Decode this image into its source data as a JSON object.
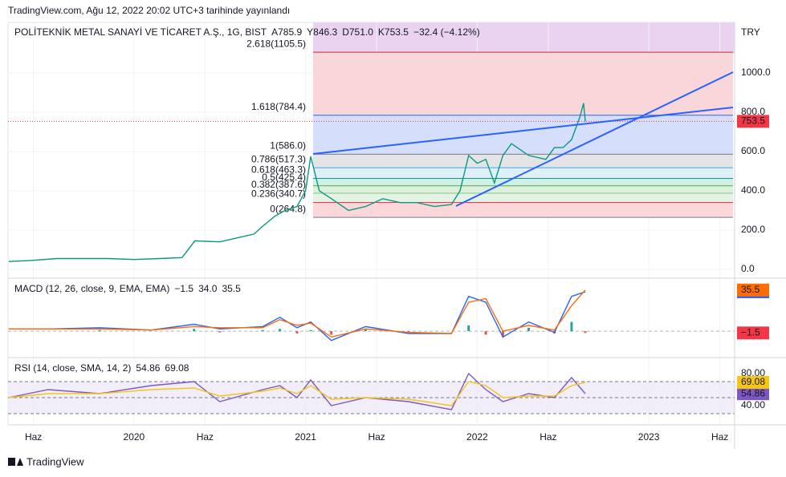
{
  "header": {
    "published": "TradingView.com, Ağu 12, 2022 20:02 UTC+3 tarihinde yayınlandı"
  },
  "footer": {
    "brand": "TradingView"
  },
  "chart_data": [
    {
      "type": "line",
      "title": "POLİTEKNİK METAL SANAYİ VE TİCARET A.Ş., 1G, BIST",
      "legend": [
        "A785.9",
        "Y846.3",
        "D751.0",
        "K753.5",
        "−32.4 (−4.12%)"
      ],
      "currency": "TRY",
      "last_price": 753.5,
      "xlim": [
        2019.266,
        2023.5
      ],
      "xticks": [
        {
          "value": 2019.414,
          "label": "Haz"
        },
        2020,
        {
          "value": 2020.414,
          "label": "Haz"
        },
        2021,
        {
          "value": 2021.414,
          "label": "Haz"
        },
        2022,
        {
          "value": 2022.414,
          "label": "Haz"
        },
        2023,
        {
          "value": 2023.414,
          "label": "Haz"
        }
      ],
      "ylim": [
        -45,
        1257
      ],
      "yticks": [
        {
          "value": 0,
          "label": "0.0"
        },
        {
          "value": 200,
          "label": "200.0"
        },
        {
          "value": 400,
          "label": "400.0"
        },
        {
          "value": 600,
          "label": "600.0"
        },
        {
          "value": 800,
          "label": "800.0"
        },
        {
          "value": 1000,
          "label": "1000.0"
        }
      ],
      "grid": true,
      "x": [
        2019.27,
        2019.4,
        2019.55,
        2019.7,
        2019.85,
        2020.0,
        2020.15,
        2020.28,
        2020.355,
        2020.5,
        2020.6,
        2020.7,
        2020.75,
        2020.82,
        2020.88,
        2020.95,
        2021.0,
        2021.03,
        2021.08,
        2021.15,
        2021.25,
        2021.35,
        2021.45,
        2021.55,
        2021.65,
        2021.75,
        2021.85,
        2021.9,
        2021.95,
        2022.0,
        2022.05,
        2022.1,
        2022.15,
        2022.2,
        2022.3,
        2022.4,
        2022.45,
        2022.5,
        2022.55,
        2022.6,
        2022.62,
        2022.63
      ],
      "series": [
        {
          "color": "#089981",
          "values": [
            40,
            45,
            55,
            55,
            55,
            50,
            55,
            60,
            145,
            140,
            160,
            180,
            220,
            270,
            300,
            320,
            400,
            575,
            400,
            360,
            300,
            320,
            360,
            340,
            340,
            320,
            330,
            400,
            580,
            540,
            560,
            440,
            580,
            640,
            580,
            560,
            620,
            620,
            660,
            780,
            846,
            753.5
          ]
        }
      ],
      "fib_levels": [
        {
          "value": 1105.5,
          "label": "2.618(1105.5)",
          "color": "#c62828",
          "fill": "#f9d6d9"
        },
        {
          "value": 784.4,
          "label": "1.618(784.4)",
          "color": "#2962ff",
          "fill": "#d5defa"
        },
        {
          "value": 586.0,
          "label": "1(586.0)",
          "color": "#787b86",
          "fill": "#e4e4e6"
        },
        {
          "value": 517.3,
          "label": "0.786(517.3)",
          "color": "#42a5f5",
          "fill": "#e0f0fb"
        },
        {
          "value": 463.3,
          "label": "0.618(463.3)",
          "color": "#089981",
          "fill": "#d3eee6"
        },
        {
          "value": 425.4,
          "label": "0.5(425.4)",
          "color": "#4caf50",
          "fill": "#dcf0dc"
        },
        {
          "value": 387.6,
          "label": "0.382(387.6)",
          "color": "#81c784",
          "fill": "#e5f3e5"
        },
        {
          "value": 340.7,
          "label": "0.236(340.7)",
          "color": "#f23645",
          "fill": "#fbd7da"
        },
        {
          "value": 264.8,
          "label": "0(264.8)",
          "color": "#787b86",
          "fill": "none"
        }
      ]
    },
    {
      "type": "line",
      "title": "MACD (12, 26, close, 9, EMA, EMA)",
      "ylim": [
        -22,
        45
      ],
      "x": [
        2019.27,
        2019.5,
        2019.8,
        2020.1,
        2020.35,
        2020.5,
        2020.75,
        2020.85,
        2020.95,
        2021.03,
        2021.15,
        2021.35,
        2021.6,
        2021.85,
        2021.95,
        2022.05,
        2022.15,
        2022.3,
        2022.45,
        2022.55,
        2022.63
      ],
      "series": [
        {
          "color": "#2962ff",
          "values": [
            2,
            2,
            3,
            1,
            6,
            2,
            4,
            12,
            3,
            8,
            -8,
            4,
            -2,
            -2,
            30,
            25,
            -5,
            8,
            -1,
            30,
            34
          ]
        },
        {
          "color": "#ff6d00",
          "values": [
            2,
            2,
            2,
            1,
            4,
            3,
            3,
            10,
            5,
            7,
            -5,
            2,
            -1,
            -2,
            25,
            28,
            0,
            5,
            1,
            22,
            35.5
          ]
        }
      ],
      "histogram": [
        0,
        0,
        1,
        0,
        2,
        -1,
        1,
        2,
        -2,
        1,
        -3,
        2,
        -1,
        0,
        5,
        -3,
        -5,
        3,
        -2,
        8,
        -1.5
      ],
      "readouts": [
        {
          "value": -1.5,
          "label": "−1.5",
          "color": "#f23645"
        },
        {
          "value": 34,
          "label": "34.0",
          "color": "#2962ff"
        },
        {
          "value": 35.5,
          "label": "35.5",
          "color": "#ff6d00"
        }
      ]
    },
    {
      "type": "line",
      "title": "RSI (14, close, SMA, 14, 2)",
      "ylim": [
        16,
        99
      ],
      "yticks": [
        {
          "value": 40,
          "label": "40.00"
        },
        {
          "value": 80,
          "label": "80.00"
        }
      ],
      "bands": [
        70,
        50,
        30
      ],
      "x": [
        2019.27,
        2019.5,
        2019.8,
        2020.1,
        2020.35,
        2020.5,
        2020.75,
        2020.85,
        2020.95,
        2021.03,
        2021.15,
        2021.35,
        2021.6,
        2021.85,
        2021.95,
        2022.05,
        2022.15,
        2022.3,
        2022.45,
        2022.55,
        2022.63
      ],
      "series": [
        {
          "color": "#7e57c2",
          "values": [
            50,
            60,
            55,
            65,
            70,
            45,
            60,
            65,
            50,
            72,
            40,
            50,
            45,
            35,
            80,
            60,
            45,
            55,
            50,
            75,
            54.86
          ]
        },
        {
          "color": "#f5c518",
          "values": [
            50,
            55,
            55,
            60,
            62,
            52,
            58,
            62,
            55,
            65,
            48,
            50,
            48,
            40,
            70,
            65,
            50,
            52,
            52,
            65,
            69.08
          ]
        }
      ],
      "readouts": [
        {
          "value": 54.86,
          "label": "54.86",
          "color": "#7e57c2"
        },
        {
          "value": 69.08,
          "label": "69.08",
          "color": "#f5c518"
        }
      ]
    }
  ]
}
